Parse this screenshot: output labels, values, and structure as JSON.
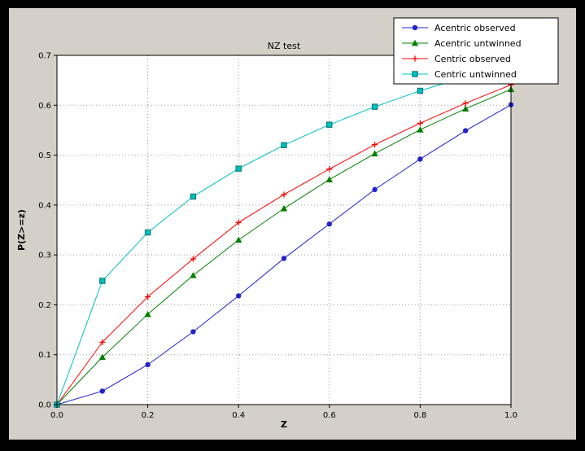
{
  "window": {
    "background": "#000000",
    "figure_background": "#d4d0c8",
    "plot_background": "#ffffff",
    "grid_color": "#999999",
    "axis_color": "#000000"
  },
  "chart_data": {
    "type": "line",
    "title": "NZ test",
    "xlabel": "Z",
    "ylabel": "P(Z>=z)",
    "xlim": [
      0.0,
      1.0
    ],
    "ylim": [
      0.0,
      0.7
    ],
    "xticks": [
      0.0,
      0.2,
      0.4,
      0.6,
      0.8,
      1.0
    ],
    "yticks": [
      0.0,
      0.1,
      0.2,
      0.3,
      0.4,
      0.5,
      0.6,
      0.7
    ],
    "grid": true,
    "legend_position": "upper right",
    "x": [
      0.0,
      0.1,
      0.2,
      0.3,
      0.4,
      0.5,
      0.6,
      0.7,
      0.8,
      0.9,
      1.0
    ],
    "series": [
      {
        "name": "Acentric observed",
        "color": "#2222cc",
        "marker": "circle",
        "values": [
          0.0,
          0.027,
          0.08,
          0.146,
          0.218,
          0.293,
          0.362,
          0.431,
          0.492,
          0.549,
          0.601
        ]
      },
      {
        "name": "Acentric untwinned",
        "color": "#008000",
        "marker": "triangle",
        "values": [
          0.0,
          0.095,
          0.181,
          0.259,
          0.33,
          0.393,
          0.451,
          0.503,
          0.551,
          0.593,
          0.632
        ]
      },
      {
        "name": "Centric observed",
        "color": "#ff0000",
        "marker": "plus",
        "values": [
          0.0,
          0.125,
          0.216,
          0.292,
          0.365,
          0.421,
          0.472,
          0.521,
          0.564,
          0.604,
          0.641
        ]
      },
      {
        "name": "Centric untwinned",
        "color": "#00c0c0",
        "marker": "square",
        "marker_edge": "#007070",
        "values": [
          0.0,
          0.248,
          0.345,
          0.417,
          0.473,
          0.52,
          0.561,
          0.597,
          0.629,
          0.657,
          0.683
        ]
      }
    ]
  }
}
